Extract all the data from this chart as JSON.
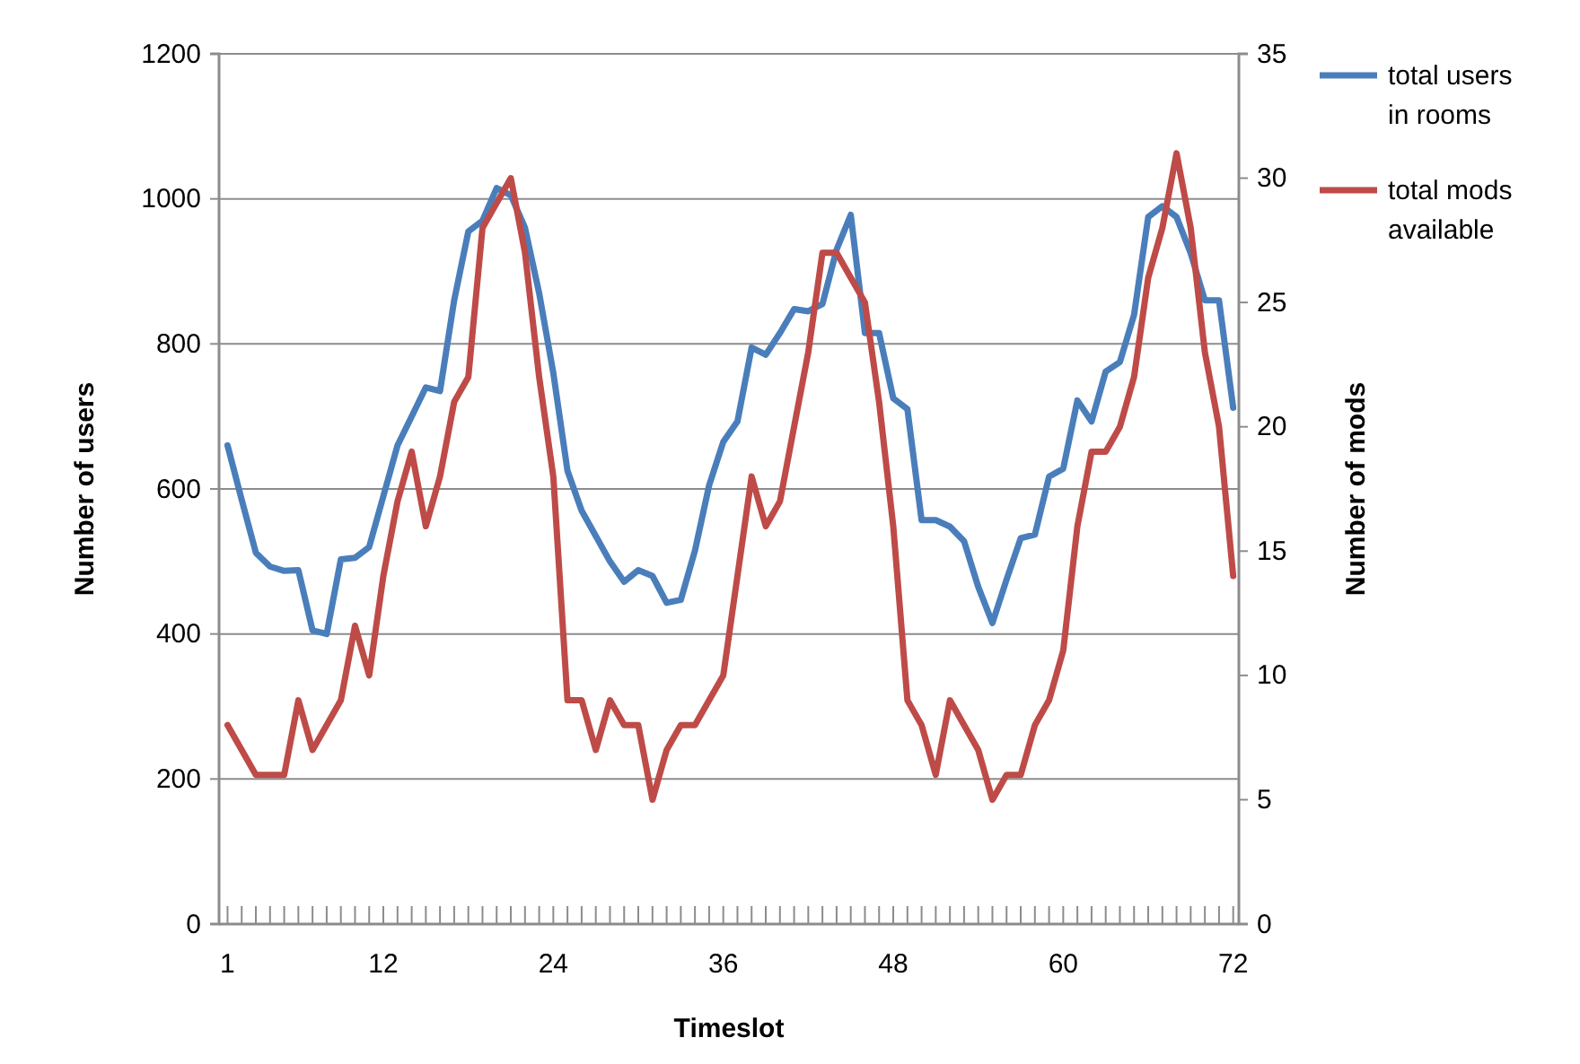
{
  "chart_data": {
    "type": "line",
    "xlabel": "Timeslot",
    "ylabel": "Number of users",
    "y2label": "Number of mods",
    "x": [
      1,
      2,
      3,
      4,
      5,
      6,
      7,
      8,
      9,
      10,
      11,
      12,
      13,
      14,
      15,
      16,
      17,
      18,
      19,
      20,
      21,
      22,
      23,
      24,
      25,
      26,
      27,
      28,
      29,
      30,
      31,
      32,
      33,
      34,
      35,
      36,
      37,
      38,
      39,
      40,
      41,
      42,
      43,
      44,
      45,
      46,
      47,
      48,
      49,
      50,
      51,
      52,
      53,
      54,
      55,
      56,
      57,
      58,
      59,
      60,
      61,
      62,
      63,
      64,
      65,
      66,
      67,
      68,
      69,
      70,
      71,
      72
    ],
    "series": [
      {
        "name": "total users in rooms",
        "color": "#4a7ebb",
        "values": [
          660,
          585,
          512,
          493,
          487,
          488,
          405,
          400,
          503,
          505,
          520,
          590,
          660,
          700,
          740,
          735,
          860,
          955,
          970,
          1015,
          1005,
          960,
          870,
          760,
          625,
          570,
          535,
          500,
          472,
          488,
          480,
          443,
          447,
          515,
          605,
          665,
          693,
          795,
          785,
          815,
          848,
          845,
          855,
          930,
          978,
          815,
          815,
          725,
          710,
          557,
          557,
          548,
          528,
          465,
          415,
          475,
          532,
          537,
          617,
          628,
          722,
          693,
          762,
          775,
          840,
          975,
          990,
          975,
          925,
          860,
          860,
          712
        ]
      },
      {
        "name": "total mods available",
        "color": "#be4b48",
        "axis": "y2",
        "values": [
          8,
          7,
          6,
          6,
          6,
          9,
          7,
          8,
          9,
          12,
          10,
          14,
          17,
          19,
          16,
          18,
          21,
          22,
          28,
          29,
          30,
          27,
          22,
          18,
          9,
          9,
          7,
          9,
          8,
          8,
          5,
          7,
          8,
          8,
          9,
          10,
          14,
          18,
          16,
          17,
          20,
          23,
          27,
          27,
          26,
          25,
          21,
          16,
          9,
          8,
          6,
          9,
          8,
          7,
          5,
          6,
          6,
          8,
          9,
          11,
          16,
          19,
          19,
          20,
          22,
          26,
          28,
          31,
          28,
          23,
          20,
          14
        ]
      }
    ],
    "xlim": [
      0.4,
      72.4
    ],
    "xticks": [
      1,
      {
        "value": 2,
        "label": null
      },
      {
        "value": 3,
        "label": null
      },
      {
        "value": 4,
        "label": null
      },
      {
        "value": 5,
        "label": null
      },
      {
        "value": 6,
        "label": null
      },
      {
        "value": 7,
        "label": null
      },
      {
        "value": 8,
        "label": null
      },
      {
        "value": 9,
        "label": null
      },
      {
        "value": 10,
        "label": null
      },
      {
        "value": 11,
        "label": null
      },
      12,
      {
        "value": 13,
        "label": null
      },
      {
        "value": 14,
        "label": null
      },
      {
        "value": 15,
        "label": null
      },
      {
        "value": 16,
        "label": null
      },
      {
        "value": 17,
        "label": null
      },
      {
        "value": 18,
        "label": null
      },
      {
        "value": 19,
        "label": null
      },
      {
        "value": 20,
        "label": null
      },
      {
        "value": 21,
        "label": null
      },
      {
        "value": 22,
        "label": null
      },
      {
        "value": 23,
        "label": null
      },
      24,
      {
        "value": 25,
        "label": null
      },
      {
        "value": 26,
        "label": null
      },
      {
        "value": 27,
        "label": null
      },
      {
        "value": 28,
        "label": null
      },
      {
        "value": 29,
        "label": null
      },
      {
        "value": 30,
        "label": null
      },
      {
        "value": 31,
        "label": null
      },
      {
        "value": 32,
        "label": null
      },
      {
        "value": 33,
        "label": null
      },
      {
        "value": 34,
        "label": null
      },
      {
        "value": 35,
        "label": null
      },
      36,
      {
        "value": 37,
        "label": null
      },
      {
        "value": 38,
        "label": null
      },
      {
        "value": 39,
        "label": null
      },
      {
        "value": 40,
        "label": null
      },
      {
        "value": 41,
        "label": null
      },
      {
        "value": 42,
        "label": null
      },
      {
        "value": 43,
        "label": null
      },
      {
        "value": 44,
        "label": null
      },
      {
        "value": 45,
        "label": null
      },
      {
        "value": 46,
        "label": null
      },
      {
        "value": 47,
        "label": null
      },
      48,
      {
        "value": 49,
        "label": null
      },
      {
        "value": 50,
        "label": null
      },
      {
        "value": 51,
        "label": null
      },
      {
        "value": 52,
        "label": null
      },
      {
        "value": 53,
        "label": null
      },
      {
        "value": 54,
        "label": null
      },
      {
        "value": 55,
        "label": null
      },
      {
        "value": 56,
        "label": null
      },
      {
        "value": 57,
        "label": null
      },
      {
        "value": 58,
        "label": null
      },
      {
        "value": 59,
        "label": null
      },
      60,
      {
        "value": 61,
        "label": null
      },
      {
        "value": 62,
        "label": null
      },
      {
        "value": 63,
        "label": null
      },
      {
        "value": 64,
        "label": null
      },
      {
        "value": 65,
        "label": null
      },
      {
        "value": 66,
        "label": null
      },
      {
        "value": 67,
        "label": null
      },
      {
        "value": 68,
        "label": null
      },
      {
        "value": 69,
        "label": null
      },
      {
        "value": 70,
        "label": null
      },
      {
        "value": 71,
        "label": null
      },
      72
    ],
    "ylim": [
      0,
      1200
    ],
    "yticks": [
      0,
      200,
      400,
      600,
      800,
      1000,
      1200
    ],
    "y2lim": [
      0,
      35
    ],
    "y2ticks": [
      0,
      5,
      10,
      15,
      20,
      25,
      30,
      35
    ],
    "grid": "y",
    "legend": "right",
    "marker": "none",
    "line_style": "solid"
  }
}
